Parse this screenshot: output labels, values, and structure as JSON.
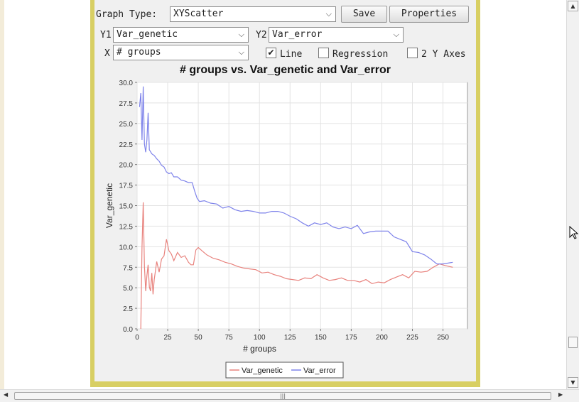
{
  "controls": {
    "graph_type_label": "Graph Type:",
    "graph_type_value": "XYScatter",
    "save_label": "Save",
    "properties_label": "Properties",
    "y1_label": "Y1",
    "y1_value": "Var_genetic",
    "y2_label": "Y2",
    "y2_value": "Var_error",
    "x_label": "X",
    "x_value": "# groups",
    "line_label": "Line",
    "line_checked": true,
    "regression_label": "Regression",
    "regression_checked": false,
    "two_y_axes_label": "2 Y Axes",
    "two_y_axes_checked": false
  },
  "icons": {
    "dropdown": "chevron-down-icon",
    "check": "checkmark-icon",
    "cursor": "mouse-pointer-icon"
  },
  "colors": {
    "frame": "#d8cf63",
    "var_genetic": "#e8827d",
    "var_error": "#7e83ea"
  },
  "chart_data": {
    "type": "line",
    "title": "# groups vs. Var_genetic and Var_error",
    "xlabel": "# groups",
    "ylabel": "Var_genetic",
    "xlim": [
      0,
      270
    ],
    "ylim": [
      0,
      30
    ],
    "xticks": [
      0,
      25,
      50,
      75,
      100,
      125,
      150,
      175,
      200,
      225,
      250
    ],
    "yticks": [
      0.0,
      2.5,
      5.0,
      7.5,
      10.0,
      12.5,
      15.0,
      17.5,
      20.0,
      22.5,
      25.0,
      27.5,
      30.0
    ],
    "grid": true,
    "legend_position": "bottom",
    "series": [
      {
        "name": "Var_genetic",
        "color": "#e8827d",
        "points": [
          [
            3,
            0
          ],
          [
            4,
            10
          ],
          [
            5,
            15.4
          ],
          [
            6,
            7.6
          ],
          [
            7,
            4.6
          ],
          [
            8,
            6.5
          ],
          [
            9,
            7.8
          ],
          [
            10,
            5.1
          ],
          [
            11,
            4.6
          ],
          [
            12,
            6.8
          ],
          [
            13,
            4.2
          ],
          [
            14,
            6
          ],
          [
            16,
            8.2
          ],
          [
            18,
            6.9
          ],
          [
            20,
            8.5
          ],
          [
            22,
            8.9
          ],
          [
            24,
            10.9
          ],
          [
            26,
            9.5
          ],
          [
            28,
            9.1
          ],
          [
            30,
            8.3
          ],
          [
            33,
            9.3
          ],
          [
            36,
            8.7
          ],
          [
            39,
            8.9
          ],
          [
            42,
            8.1
          ],
          [
            44,
            7.8
          ],
          [
            46,
            7.8
          ],
          [
            48,
            9.6
          ],
          [
            50,
            9.9
          ],
          [
            53,
            9.5
          ],
          [
            57,
            9
          ],
          [
            62,
            8.6
          ],
          [
            67,
            8.4
          ],
          [
            72,
            8.1
          ],
          [
            77,
            7.9
          ],
          [
            82,
            7.6
          ],
          [
            87,
            7.4
          ],
          [
            92,
            7.3
          ],
          [
            97,
            7.2
          ],
          [
            102,
            6.8
          ],
          [
            107,
            6.9
          ],
          [
            112,
            6.6
          ],
          [
            117,
            6.4
          ],
          [
            122,
            6.1
          ],
          [
            127,
            6
          ],
          [
            132,
            5.9
          ],
          [
            137,
            6.2
          ],
          [
            142,
            6.1
          ],
          [
            147,
            6.6
          ],
          [
            152,
            6.2
          ],
          [
            157,
            5.9
          ],
          [
            162,
            6
          ],
          [
            167,
            6.2
          ],
          [
            172,
            5.9
          ],
          [
            177,
            5.9
          ],
          [
            182,
            5.7
          ],
          [
            187,
            6
          ],
          [
            192,
            5.5
          ],
          [
            197,
            5.7
          ],
          [
            202,
            5.6
          ],
          [
            207,
            6
          ],
          [
            212,
            6.3
          ],
          [
            217,
            6.6
          ],
          [
            222,
            6.2
          ],
          [
            227,
            7
          ],
          [
            232,
            6.9
          ],
          [
            237,
            7
          ],
          [
            242,
            7.5
          ],
          [
            247,
            7.9
          ],
          [
            252,
            7.7
          ],
          [
            258,
            7.5
          ]
        ]
      },
      {
        "name": "Var_error",
        "color": "#7e83ea",
        "points": [
          [
            2,
            27
          ],
          [
            3,
            28.7
          ],
          [
            4,
            23
          ],
          [
            5,
            29.5
          ],
          [
            6,
            22.5
          ],
          [
            7,
            21.5
          ],
          [
            8,
            23
          ],
          [
            9,
            26.3
          ],
          [
            10,
            21.8
          ],
          [
            12,
            21.3
          ],
          [
            14,
            21.1
          ],
          [
            16,
            20.7
          ],
          [
            18,
            20.4
          ],
          [
            20,
            19.9
          ],
          [
            22,
            19.7
          ],
          [
            24,
            19.1
          ],
          [
            26,
            18.9
          ],
          [
            28,
            19
          ],
          [
            30,
            18.5
          ],
          [
            33,
            18.5
          ],
          [
            36,
            18.1
          ],
          [
            39,
            18
          ],
          [
            42,
            17.8
          ],
          [
            45,
            17.8
          ],
          [
            47,
            16.8
          ],
          [
            49,
            15.9
          ],
          [
            51,
            15.5
          ],
          [
            55,
            15.6
          ],
          [
            60,
            15.3
          ],
          [
            65,
            15.2
          ],
          [
            70,
            14.7
          ],
          [
            75,
            14.9
          ],
          [
            80,
            14.5
          ],
          [
            85,
            14.3
          ],
          [
            90,
            14.4
          ],
          [
            95,
            14.3
          ],
          [
            100,
            14.1
          ],
          [
            105,
            14.1
          ],
          [
            110,
            14.3
          ],
          [
            115,
            14.3
          ],
          [
            120,
            14.1
          ],
          [
            125,
            13.7
          ],
          [
            130,
            13.4
          ],
          [
            135,
            12.9
          ],
          [
            140,
            12.5
          ],
          [
            145,
            12.9
          ],
          [
            150,
            12.7
          ],
          [
            155,
            12.9
          ],
          [
            160,
            12.4
          ],
          [
            165,
            12.2
          ],
          [
            170,
            12.4
          ],
          [
            175,
            12.2
          ],
          [
            180,
            12.6
          ],
          [
            185,
            11.6
          ],
          [
            190,
            11.8
          ],
          [
            195,
            11.9
          ],
          [
            200,
            11.9
          ],
          [
            205,
            11.9
          ],
          [
            210,
            11.2
          ],
          [
            215,
            10.9
          ],
          [
            220,
            10.6
          ],
          [
            225,
            9.4
          ],
          [
            230,
            9.3
          ],
          [
            235,
            9
          ],
          [
            240,
            8.5
          ],
          [
            245,
            7.9
          ],
          [
            250,
            7.9
          ],
          [
            258,
            8.1
          ]
        ]
      }
    ]
  }
}
